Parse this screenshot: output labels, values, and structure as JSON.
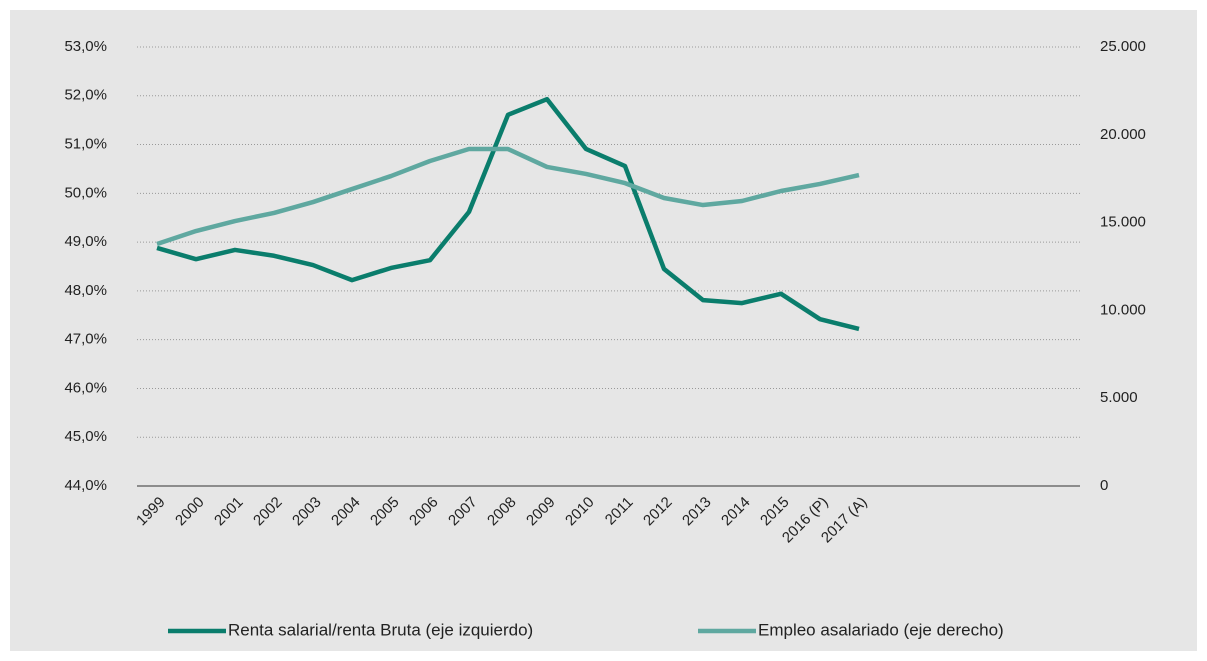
{
  "chart_data": {
    "type": "line",
    "categories": [
      "1999",
      "2000",
      "2001",
      "2002",
      "2003",
      "2004",
      "2005",
      "2006",
      "2007",
      "2008",
      "2009",
      "2010",
      "2011",
      "2012",
      "2013",
      "2014",
      "2015",
      "2016 (P)",
      "2017 (A)"
    ],
    "series": [
      {
        "name": "Renta salarial/renta Bruta (eje izquierdo)",
        "color": "#0a7d6c",
        "values": [
          48.88,
          48.65,
          48.84,
          48.72,
          48.53,
          48.22,
          48.47,
          48.63,
          49.62,
          51.61,
          51.93,
          50.91,
          50.56,
          48.45,
          47.81,
          47.75,
          47.94,
          47.42,
          47.22
        ]
      },
      {
        "name": "Empleo asalariado (eje derecho)",
        "color": "#5fa8a0",
        "axis": "y2",
        "values": [
          13780,
          14520,
          15090,
          15550,
          16170,
          16910,
          17650,
          18510,
          19190,
          19190,
          18170,
          17770,
          17250,
          16400,
          16000,
          16230,
          16800,
          17200,
          17710
        ]
      }
    ],
    "ylim": [
      44,
      53
    ],
    "yticks": [
      {
        "value": 44,
        "label": "44,0%"
      },
      {
        "value": 45,
        "label": "45,0%"
      },
      {
        "value": 46,
        "label": "46,0%"
      },
      {
        "value": 47,
        "label": "47,0%"
      },
      {
        "value": 48,
        "label": "48,0%"
      },
      {
        "value": 49,
        "label": "49,0%"
      },
      {
        "value": 50,
        "label": "50,0%"
      },
      {
        "value": 51,
        "label": "51,0%"
      },
      {
        "value": 52,
        "label": "52,0%"
      },
      {
        "value": 53,
        "label": "53,0%"
      }
    ],
    "y2lim": [
      0,
      25000
    ],
    "y2ticks": [
      0,
      {
        "value": 5000,
        "label": "5.000"
      },
      {
        "value": 10000,
        "label": "10.000"
      },
      {
        "value": 15000,
        "label": "15.000"
      },
      {
        "value": 20000,
        "label": "20.000"
      },
      {
        "value": 25000,
        "label": "25.000"
      }
    ],
    "grid": true,
    "legend": "bottom"
  }
}
